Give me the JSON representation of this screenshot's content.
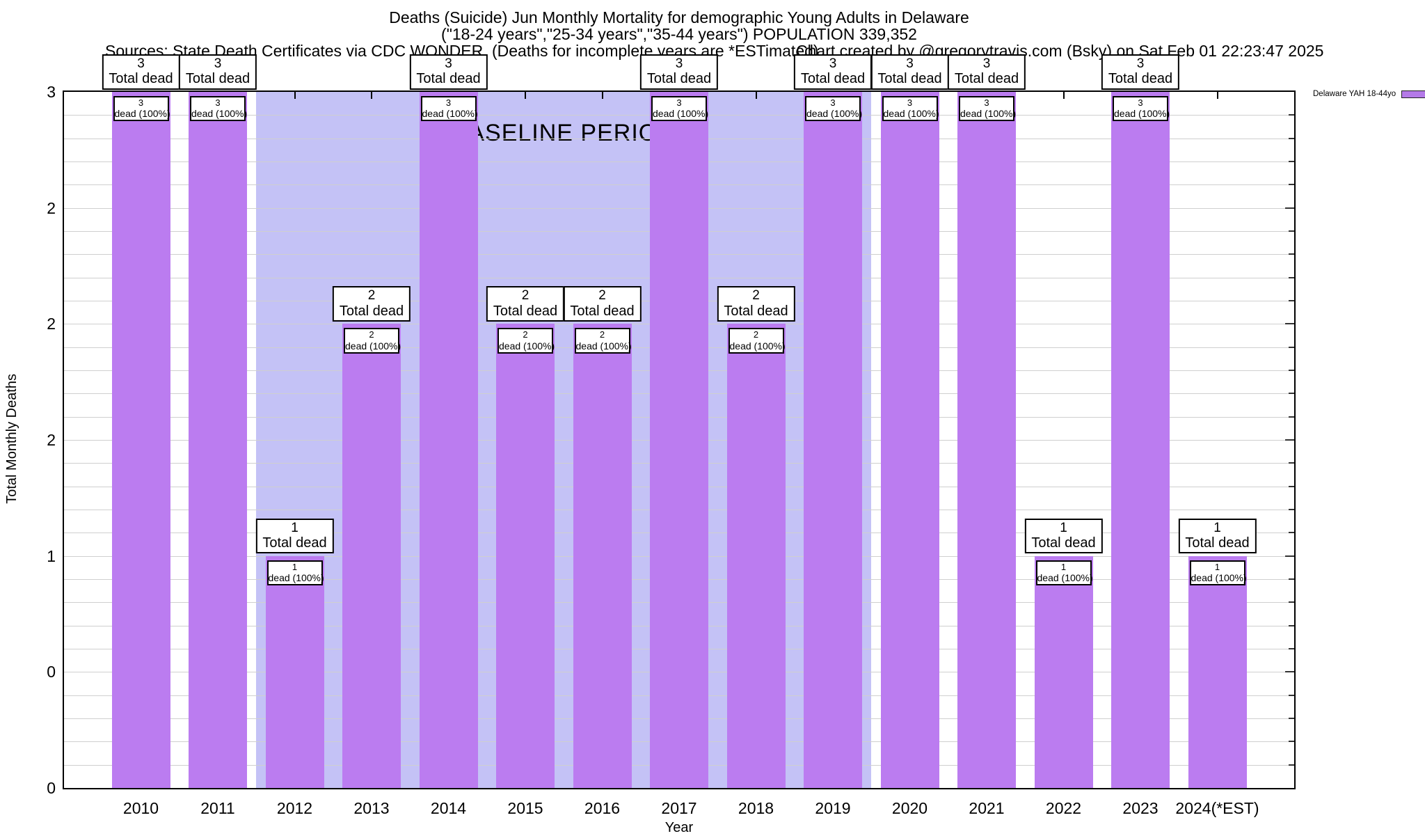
{
  "header": {
    "title_line1": "Deaths (Suicide) Jun Monthly Mortality for demographic Young Adults in Delaware",
    "title_line2": "(\"18-24 years\",\"25-34 years\",\"35-44 years\") POPULATION 339,352",
    "sources": "Sources: State Death Certificates via CDC WONDER. (Deaths for incomplete years are *ESTimated)",
    "credit": "Chart created by @gregorytravis.com (Bsky) on Sat Feb 01 22:23:47 2025"
  },
  "legend": {
    "label": "Delaware YAH 18-44yo"
  },
  "axes": {
    "y_label": "Total Monthly Deaths",
    "x_label": "Year",
    "y_tick_labels": [
      "3",
      "2",
      "2",
      "2",
      "1",
      "0",
      "0"
    ]
  },
  "baseline": {
    "label": "BASELINE PERIOD"
  },
  "colors": {
    "bar": "#bb7cf0",
    "baseline_bg": "#c4c2f6",
    "grid": "#cfcfcf",
    "tick": "#333333",
    "swatch": "#b47ae8"
  },
  "chart_data": {
    "type": "bar",
    "title": "Deaths (Suicide) Jun Monthly Mortality for demographic Young Adults in Delaware (\"18-24 years\",\"25-34 years\",\"35-44 years\") POPULATION 339,352",
    "xlabel": "Year",
    "ylabel": "Total Monthly Deaths",
    "ylim": [
      0,
      3
    ],
    "y_major_tick_values": [
      0,
      0.5,
      1,
      1.5,
      2,
      2.5,
      3
    ],
    "y_major_tick_display": [
      "0",
      "0",
      "1",
      "2",
      "2",
      "2",
      "3"
    ],
    "grid": true,
    "legend_position": "top-right-outside",
    "legend_entries": [
      "Delaware YAH 18-44yo"
    ],
    "baseline_period": {
      "label": "BASELINE PERIOD",
      "start_category": "2012",
      "end_category": "2019"
    },
    "categories": [
      "2010",
      "2011",
      "2012",
      "2013",
      "2014",
      "2015",
      "2016",
      "2017",
      "2018",
      "2019",
      "2020",
      "2021",
      "2022",
      "2023",
      "2024(*EST)"
    ],
    "values": [
      3,
      3,
      1,
      2,
      3,
      2,
      2,
      3,
      2,
      3,
      3,
      3,
      1,
      3,
      1
    ],
    "bars": [
      {
        "year": "2010",
        "value": 3,
        "callout_value": "3",
        "callout_text": "Total dead",
        "bar_value": "3",
        "bar_text": "dead (100%)"
      },
      {
        "year": "2011",
        "value": 3,
        "callout_value": "3",
        "callout_text": "Total dead",
        "bar_value": "3",
        "bar_text": "dead (100%)"
      },
      {
        "year": "2012",
        "value": 1,
        "callout_value": "1",
        "callout_text": "Total dead",
        "bar_value": "1",
        "bar_text": "dead (100%)"
      },
      {
        "year": "2013",
        "value": 2,
        "callout_value": "2",
        "callout_text": "Total dead",
        "bar_value": "2",
        "bar_text": "dead (100%)"
      },
      {
        "year": "2014",
        "value": 3,
        "callout_value": "3",
        "callout_text": "Total dead",
        "bar_value": "3",
        "bar_text": "dead (100%)"
      },
      {
        "year": "2015",
        "value": 2,
        "callout_value": "2",
        "callout_text": "Total dead",
        "bar_value": "2",
        "bar_text": "dead (100%)"
      },
      {
        "year": "2016",
        "value": 2,
        "callout_value": "2",
        "callout_text": "Total dead",
        "bar_value": "2",
        "bar_text": "dead (100%)"
      },
      {
        "year": "2017",
        "value": 3,
        "callout_value": "3",
        "callout_text": "Total dead",
        "bar_value": "3",
        "bar_text": "dead (100%)"
      },
      {
        "year": "2018",
        "value": 2,
        "callout_value": "2",
        "callout_text": "Total dead",
        "bar_value": "2",
        "bar_text": "dead (100%)"
      },
      {
        "year": "2019",
        "value": 3,
        "callout_value": "3",
        "callout_text": "Total dead",
        "bar_value": "3",
        "bar_text": "dead (100%)"
      },
      {
        "year": "2020",
        "value": 3,
        "callout_value": "3",
        "callout_text": "Total dead",
        "bar_value": "3",
        "bar_text": "dead (100%)"
      },
      {
        "year": "2021",
        "value": 3,
        "callout_value": "3",
        "callout_text": "Total dead",
        "bar_value": "3",
        "bar_text": "dead (100%)"
      },
      {
        "year": "2022",
        "value": 1,
        "callout_value": "1",
        "callout_text": "Total dead",
        "bar_value": "1",
        "bar_text": "dead (100%)"
      },
      {
        "year": "2023",
        "value": 3,
        "callout_value": "3",
        "callout_text": "Total dead",
        "bar_value": "3",
        "bar_text": "dead (100%)"
      },
      {
        "year": "2024(*EST)",
        "value": 1,
        "callout_value": "1",
        "callout_text": "Total dead",
        "bar_value": "1",
        "bar_text": "dead (100%)"
      }
    ]
  }
}
